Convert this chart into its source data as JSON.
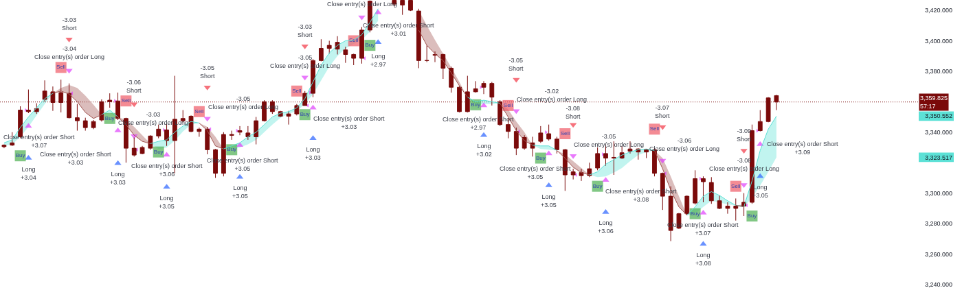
{
  "chart_data": {
    "type": "candlestick",
    "categories": [
      null,
      null,
      null,
      null,
      null,
      null,
      null,
      null,
      null,
      null,
      null,
      null,
      null,
      null,
      null,
      null,
      null,
      null,
      null,
      null,
      null,
      null,
      null,
      null,
      null,
      null,
      null,
      null,
      null,
      null,
      null,
      null,
      null,
      null,
      null,
      null,
      null,
      null,
      null,
      null,
      null,
      null,
      null,
      null,
      null,
      null,
      null,
      null,
      null,
      null,
      null,
      null,
      null,
      null,
      null,
      null,
      null,
      null,
      null,
      null,
      null,
      null,
      null,
      null,
      null,
      null,
      null,
      null,
      null,
      null,
      null,
      null,
      null,
      null,
      null,
      null,
      null,
      null,
      null,
      null,
      null,
      null,
      null,
      null,
      null,
      null,
      null,
      null,
      null,
      null,
      null,
      null,
      null,
      null,
      null,
      null,
      null,
      null,
      null,
      null,
      null,
      null,
      null,
      null,
      null,
      null,
      null,
      null,
      null,
      null,
      null,
      null,
      null
    ],
    "ohlc": [
      [
        3331.5,
        3332,
        3329.5,
        3330.5
      ],
      [
        3333,
        3340,
        3331,
        3331.5
      ],
      [
        3354.5,
        3357,
        3336,
        3337
      ],
      [
        3354.5,
        3368,
        3352.5,
        3353.5
      ],
      [
        3355.5,
        3359,
        3352,
        3353.5
      ],
      [
        3367,
        3374,
        3360,
        3361.5
      ],
      [
        3366.5,
        3370,
        3354,
        3359.5
      ],
      [
        3366,
        3374.5,
        3353,
        3359.5
      ],
      [
        3365.5,
        3372,
        3349,
        3349.5
      ],
      [
        3349.5,
        3358.5,
        3341,
        3347.5
      ],
      [
        3347.5,
        3349.5,
        3341,
        3343
      ],
      [
        3347,
        3348,
        3342,
        3343
      ],
      [
        3360,
        3361.5,
        3347,
        3348
      ],
      [
        3361,
        3365.5,
        3356,
        3360
      ],
      [
        3360.5,
        3366,
        3348,
        3349
      ],
      [
        3349,
        3349.5,
        3320,
        3329.5
      ],
      [
        3329.5,
        3336.5,
        3324,
        3325
      ],
      [
        3330,
        3331,
        3325.5,
        3326
      ],
      [
        3337.5,
        3338,
        3328.5,
        3329.5
      ],
      [
        3342,
        3345,
        3336,
        3337.5
      ],
      [
        3341.5,
        3345.5,
        3331,
        3334.5
      ],
      [
        3348.5,
        3377,
        3313,
        3334.5
      ],
      [
        3349,
        3354.5,
        3346.5,
        3347.5
      ],
      [
        3350.5,
        3351,
        3340,
        3340.5
      ],
      [
        3342,
        3343,
        3337,
        3340.5
      ],
      [
        3342,
        3343.5,
        3325.5,
        3328.5
      ],
      [
        3328.5,
        3329,
        3310,
        3313
      ],
      [
        3338.5,
        3340,
        3311,
        3313
      ],
      [
        3338.5,
        3341,
        3335,
        3338
      ],
      [
        3341,
        3344,
        3338,
        3340
      ],
      [
        3339.5,
        3344,
        3335,
        3337
      ],
      [
        3347.5,
        3350,
        3332,
        3337
      ],
      [
        3360,
        3361,
        3347,
        3347.5
      ],
      [
        3360,
        3361,
        3352,
        3353.5
      ],
      [
        3353.5,
        3354,
        3350,
        3350.5
      ],
      [
        3352,
        3354,
        3345,
        3350.5
      ],
      [
        3357.5,
        3358.5,
        3351,
        3352
      ],
      [
        3365.5,
        3367,
        3357.5,
        3357.5
      ],
      [
        3387,
        3388,
        3363,
        3365.5
      ],
      [
        3395,
        3401,
        3386.5,
        3387
      ],
      [
        3397,
        3400,
        3391.5,
        3395
      ],
      [
        3399,
        3403,
        3391,
        3394.5
      ],
      [
        3394,
        3396,
        3385.5,
        3391
      ],
      [
        3391,
        3391.5,
        3384,
        3388.5
      ],
      [
        3407,
        3409,
        3385,
        3388.5
      ],
      [
        3426,
        3426.5,
        3405.5,
        3407
      ],
      null,
      null,
      [
        3426.5,
        3426.5,
        3422.5,
        3424
      ],
      [
        3426.5,
        3426.5,
        3417,
        3423.5
      ],
      [
        3426.5,
        3426.5,
        3419.5,
        3420
      ],
      [
        3419.5,
        3421,
        3382,
        3387
      ],
      [
        3387,
        3397,
        3386,
        3387
      ],
      [
        3391,
        3393,
        3386,
        3390.5
      ],
      [
        3391,
        3391.5,
        3375,
        3382
      ],
      [
        3382,
        3383,
        3366,
        3369.5
      ],
      [
        3369.5,
        3370,
        3353,
        3353.5
      ],
      [
        3366.5,
        3377,
        3353,
        3353.5
      ],
      [
        3368.5,
        3373.5,
        3366,
        3366.5
      ],
      [
        3372,
        3373.5,
        3365,
        3369.5
      ],
      [
        3372,
        3373,
        3357.5,
        3363
      ],
      [
        3360,
        3361,
        3344,
        3345
      ],
      [
        3345,
        3349,
        3336,
        3340.5
      ],
      [
        3340.5,
        3343,
        3325,
        3329.5
      ],
      [
        3336.5,
        3338,
        3328.5,
        3329.5
      ],
      [
        3333,
        3337,
        3324,
        3329.5
      ],
      [
        3339.5,
        3344,
        3333,
        3334
      ],
      [
        3339,
        3345,
        3334.5,
        3335.5
      ],
      [
        3335.5,
        3337,
        3326,
        3328.5
      ],
      [
        3328.5,
        3329,
        3301.5,
        3312
      ],
      [
        3314,
        3316,
        3309,
        3312
      ],
      [
        3313.5,
        3316,
        3308,
        3311.5
      ],
      [
        3316,
        3320,
        3310.5,
        3311.5
      ],
      [
        3326,
        3330,
        3315,
        3316.5
      ],
      [
        3326,
        3332,
        3318,
        3323
      ],
      [
        3323.5,
        3334,
        3312,
        3323
      ],
      [
        3326.5,
        3331,
        3322.5,
        3323
      ],
      [
        3329,
        3334,
        3326,
        3327.5
      ],
      [
        3329,
        3329.5,
        3322,
        3327
      ],
      [
        3328.5,
        3329,
        3323,
        3327
      ],
      [
        3328.5,
        3329.5,
        3311,
        3313
      ],
      [
        3313,
        3313.5,
        3289,
        3298
      ],
      [
        3298,
        3304.5,
        3268.5,
        3275.5
      ],
      [
        3286.5,
        3287,
        3276.5,
        3277
      ],
      [
        3298,
        3298.5,
        3285.5,
        3286.5
      ],
      [
        3309.5,
        3315,
        3292.5,
        3293.5
      ],
      [
        3309.5,
        3311,
        3294,
        3307.5
      ],
      [
        3307,
        3310.5,
        3293,
        3295
      ],
      [
        3295,
        3298.5,
        3289.5,
        3290
      ],
      [
        3291.5,
        3294,
        3286.5,
        3290
      ],
      [
        3291.5,
        3296.5,
        3282,
        3290
      ],
      [
        3294,
        3300,
        3285,
        3291.5
      ],
      [
        3341,
        3345,
        3293,
        3294
      ],
      [
        3347,
        3354.5,
        3340.5,
        3341
      ],
      [
        3362.5,
        3363,
        3346.5,
        3347
      ],
      [
        3364,
        3364.5,
        3354.5,
        3359.825
      ],
      null,
      null,
      null,
      null,
      null,
      null,
      null,
      null,
      null,
      null,
      null,
      null,
      null,
      null,
      null,
      null,
      null
    ],
    "color": "#7a0a0a",
    "ylim": [
      3237.75,
      3426.75
    ],
    "yticks": [
      {
        "value": 3240,
        "label": "3,240.000"
      },
      {
        "value": 3260,
        "label": "3,260.000"
      },
      {
        "value": 3280,
        "label": "3,280.000"
      },
      {
        "value": 3300,
        "label": "3,300.000"
      },
      {
        "value": 3323.517,
        "label": "3,323.517"
      },
      {
        "value": 3340,
        "label": "3,340.000"
      },
      {
        "value": 3350.552,
        "label": "3,350.552"
      },
      {
        "value": 3380,
        "label": "3,380.000"
      },
      {
        "value": 3400,
        "label": "3,400.000"
      },
      {
        "value": 3420,
        "label": "3,420.000"
      }
    ],
    "tick_labels": "y",
    "series": [
      {
        "type": "line",
        "color": "#5ce1d6",
        "values": [
          3333,
          3335,
          3343,
          3350,
          3356,
          3362,
          3365.5,
          null,
          null,
          null,
          null,
          null,
          3351.5,
          3354.5,
          3350,
          null,
          null,
          null,
          3332.5,
          3334,
          3335,
          3340,
          3344,
          3347,
          3346,
          null,
          null,
          3329,
          3331,
          3333,
          3337,
          3340,
          3345,
          3350,
          3352.5,
          3353.5,
          3356,
          3362,
          3373,
          3384,
          3392,
          3397,
          3400,
          3400.5,
          3404,
          3412,
          3421,
          null,
          null,
          null,
          null,
          null,
          null,
          null,
          null,
          null,
          null,
          3363,
          3360,
          3361,
          3360,
          3359,
          null,
          null,
          null,
          3331.5,
          3331,
          3331,
          3328,
          null,
          null,
          null,
          3312,
          3314,
          3319,
          3322,
          3325,
          3327,
          3328.5,
          3329,
          3328,
          null,
          null,
          null,
          3285.5,
          3291,
          3298,
          3301,
          3298.5,
          3295,
          3292,
          3291,
          3308,
          3328,
          3342,
          3350.552,
          null,
          null,
          null,
          null,
          null,
          null,
          null,
          null,
          null,
          null,
          null,
          null,
          null,
          null,
          null,
          null,
          null
        ],
        "lower": [
          3331,
          3332,
          3337,
          3343.5,
          3351,
          3358.5,
          3365.5,
          null,
          null,
          null,
          null,
          null,
          3351.5,
          3352.5,
          3350,
          null,
          null,
          null,
          3332.5,
          3329,
          3330,
          3334.5,
          3340.5,
          3345,
          3346,
          null,
          null,
          3329,
          3329,
          3330,
          3332,
          3335,
          3340,
          3345,
          3349.5,
          3352,
          3354,
          3358.5,
          3365,
          3374,
          3383,
          3390,
          3395,
          3398,
          3400.5,
          3406,
          3413,
          null,
          null,
          null,
          null,
          null,
          null,
          null,
          null,
          null,
          null,
          3363,
          3358,
          3358.5,
          3358.5,
          3359,
          null,
          null,
          null,
          3331.5,
          3329,
          3328.5,
          3328,
          null,
          null,
          null,
          3312,
          3310.5,
          3311,
          3313.5,
          3316.5,
          3321,
          3325,
          3327,
          3328,
          null,
          null,
          null,
          3285.5,
          3286.5,
          3291,
          3295,
          3294,
          3292.5,
          3292,
          3291,
          3297,
          3305,
          3314,
          3323.517,
          null,
          null,
          null,
          null,
          null,
          null,
          null,
          null,
          null,
          null,
          null,
          null,
          null,
          null,
          null,
          null,
          null
        ],
        "upper": [
          3333,
          3335,
          3343,
          3350,
          3356,
          3362,
          3365.5,
          null,
          null,
          null,
          null,
          null,
          3351.5,
          3354.5,
          3350,
          null,
          null,
          null,
          3332.5,
          3334,
          3335,
          3340,
          3344,
          3347,
          3346,
          null,
          null,
          3329,
          3331,
          3333,
          3337,
          3340,
          3345,
          3350,
          3352.5,
          3353.5,
          3356,
          3362,
          3373,
          3384,
          3392,
          3397,
          3400,
          3400.5,
          3404,
          3412,
          3421,
          null,
          null,
          null,
          null,
          null,
          null,
          null,
          null,
          null,
          null,
          3363,
          3360,
          3361,
          3360,
          3359,
          null,
          null,
          null,
          3331.5,
          3331,
          3331,
          3328,
          null,
          null,
          null,
          3312,
          3314,
          3319,
          3322,
          3325,
          3327,
          3328.5,
          3329,
          3328,
          null,
          null,
          null,
          3285.5,
          3291,
          3298,
          3301,
          3298.5,
          3295,
          3292,
          3292.5,
          3308,
          3328,
          3342,
          3350.552,
          null,
          null,
          null,
          null,
          null,
          null,
          null,
          null,
          null,
          null,
          null,
          null,
          null,
          null,
          null,
          null,
          null
        ]
      },
      {
        "type": "line",
        "color": "#a0524e",
        "values": [
          null,
          null,
          null,
          null,
          null,
          null,
          3365.5,
          3367,
          3365,
          3360,
          3353,
          3349,
          3351.5,
          null,
          3350,
          3345,
          3338,
          3334,
          3332.5,
          null,
          null,
          null,
          null,
          null,
          3346,
          3341,
          3331,
          3329,
          null,
          null,
          null,
          null,
          null,
          null,
          null,
          null,
          null,
          null,
          null,
          null,
          null,
          null,
          null,
          null,
          null,
          null,
          null,
          null,
          null,
          null,
          null,
          3407,
          3397,
          3391.5,
          3387,
          3379,
          3370.5,
          3363,
          null,
          null,
          null,
          3359,
          3350,
          3341,
          3334.5,
          3331.5,
          null,
          null,
          3328,
          3323,
          3317,
          3313.5,
          3312,
          null,
          null,
          null,
          null,
          null,
          null,
          null,
          3328,
          3316,
          3302,
          3291,
          3285.5,
          null,
          null,
          null,
          null,
          null,
          3292,
          3291,
          null,
          null,
          null,
          null,
          null,
          null,
          null,
          null,
          null,
          null,
          null,
          null,
          null,
          null,
          null,
          null,
          null,
          null,
          null,
          null,
          null
        ],
        "lower": [
          null,
          null,
          null,
          null,
          null,
          null,
          3365.5,
          3367,
          3365,
          3360,
          3353,
          3349,
          3351.5,
          null,
          3350,
          3345,
          3338,
          3334,
          3332.5,
          null,
          null,
          null,
          null,
          null,
          3346,
          3341,
          3331,
          3329,
          null,
          null,
          null,
          null,
          null,
          null,
          null,
          null,
          null,
          null,
          null,
          null,
          null,
          null,
          null,
          null,
          null,
          null,
          null,
          null,
          null,
          null,
          null,
          3407,
          3397,
          3391.5,
          3387,
          3379,
          3370.5,
          3363,
          null,
          null,
          null,
          3359,
          3350,
          3341,
          3334.5,
          3331.5,
          null,
          null,
          3328,
          3323,
          3317,
          3313.5,
          3312,
          null,
          null,
          null,
          null,
          null,
          null,
          null,
          3328,
          3316,
          3302,
          3291,
          3285.5,
          null,
          null,
          null,
          null,
          null,
          3292,
          3291,
          null,
          null,
          null,
          null,
          null,
          null,
          null,
          null,
          null,
          null,
          null,
          null,
          null,
          null,
          null,
          null,
          null,
          null,
          null,
          null,
          null
        ],
        "upper": [
          null,
          null,
          null,
          null,
          null,
          null,
          3365.5,
          3369,
          3371,
          3369,
          3364,
          3358,
          3351.5,
          null,
          3350,
          3348,
          3343.5,
          3338,
          3332.5,
          null,
          null,
          null,
          null,
          null,
          3346,
          3343.5,
          3337,
          3329,
          null,
          null,
          null,
          null,
          null,
          null,
          null,
          null,
          null,
          null,
          null,
          null,
          null,
          null,
          null,
          null,
          null,
          null,
          null,
          null,
          null,
          null,
          null,
          3420,
          3410,
          3400.5,
          3391.5,
          3382.5,
          3373,
          3363,
          null,
          null,
          null,
          3359,
          3355,
          3347,
          3340,
          3331.5,
          null,
          null,
          3328,
          3325.5,
          3321,
          3316.5,
          3312,
          null,
          null,
          null,
          null,
          null,
          null,
          null,
          3328,
          3323,
          3311,
          3298,
          3285.5,
          null,
          null,
          null,
          null,
          null,
          3292,
          3292.5,
          null,
          null,
          null,
          null,
          null,
          null,
          null,
          null,
          null,
          null,
          null,
          null,
          null,
          null,
          null,
          null,
          null,
          null,
          null,
          null,
          null
        ]
      },
      {
        "type": "scatter",
        "marker": "triangle",
        "color": "#2962ff",
        "values": [
          null,
          null,
          null,
          3323,
          null,
          null,
          null,
          null,
          null,
          null,
          null,
          null,
          null,
          null,
          3319.5,
          null,
          null,
          null,
          null,
          null,
          3304,
          null,
          null,
          null,
          null,
          null,
          null,
          null,
          null,
          3310.5,
          null,
          null,
          null,
          null,
          null,
          null,
          null,
          null,
          3336,
          null,
          null,
          null,
          null,
          null,
          null,
          null,
          3399,
          null,
          null,
          null,
          null,
          null,
          null,
          null,
          null,
          null,
          null,
          null,
          null,
          3338,
          null,
          null,
          null,
          null,
          null,
          null,
          null,
          3305,
          null,
          null,
          null,
          null,
          null,
          null,
          3287.5,
          null,
          null,
          null,
          null,
          null,
          null,
          null,
          null,
          null,
          null,
          null,
          3266.5,
          null,
          null,
          null,
          null,
          null,
          null,
          3311,
          null,
          null,
          null,
          null,
          null,
          null,
          null,
          null,
          null,
          null,
          null,
          null,
          null,
          null,
          null,
          null,
          null,
          null,
          null
        ]
      },
      {
        "type": "scatter",
        "marker": "triangle",
        "color": "#f23645",
        "values": [
          null,
          null,
          null,
          null,
          null,
          null,
          null,
          null,
          3401,
          null,
          null,
          null,
          null,
          null,
          null,
          null,
          3358.5,
          null,
          null,
          null,
          null,
          null,
          null,
          null,
          null,
          3369.5,
          null,
          null,
          null,
          null,
          null,
          null,
          null,
          null,
          null,
          null,
          null,
          3396.5,
          null,
          null,
          null,
          null,
          null,
          null,
          null,
          null,
          null,
          null,
          null,
          null,
          null,
          null,
          null,
          null,
          null,
          null,
          null,
          null,
          null,
          null,
          null,
          null,
          null,
          3374.5,
          null,
          null,
          null,
          null,
          null,
          null,
          3345,
          null,
          null,
          null,
          null,
          null,
          null,
          null,
          null,
          null,
          null,
          3343.5,
          null,
          null,
          null,
          null,
          null,
          null,
          null,
          null,
          null,
          3328,
          null,
          null,
          null,
          null,
          null,
          null,
          null,
          null,
          null,
          null,
          null,
          null,
          null,
          null,
          null,
          null,
          null,
          null,
          null,
          null,
          null
        ]
      },
      {
        "type": "scatter",
        "marker": "square",
        "color": "#4caf50",
        "values": [
          null,
          null,
          3324.5,
          null,
          null,
          null,
          null,
          null,
          null,
          null,
          null,
          null,
          null,
          3349,
          null,
          null,
          null,
          null,
          null,
          3327,
          null,
          null,
          null,
          null,
          null,
          null,
          null,
          null,
          3328.5,
          null,
          null,
          null,
          null,
          null,
          null,
          null,
          null,
          3351.5,
          null,
          null,
          null,
          null,
          null,
          null,
          null,
          3397,
          null,
          null,
          null,
          null,
          null,
          null,
          null,
          null,
          null,
          null,
          null,
          null,
          3358,
          null,
          null,
          null,
          null,
          null,
          null,
          null,
          3323,
          null,
          null,
          null,
          null,
          null,
          null,
          3304.5,
          null,
          null,
          null,
          null,
          null,
          null,
          null,
          null,
          null,
          null,
          null,
          3286.5,
          null,
          null,
          null,
          null,
          null,
          null,
          3285,
          null,
          null,
          null,
          null,
          null,
          null,
          null,
          null,
          null,
          null,
          null,
          null,
          null,
          null,
          null,
          null,
          null,
          null,
          null,
          null
        ],
        "value_labels": [
          null,
          null,
          "Buy",
          null,
          null,
          null,
          null,
          null,
          null,
          null,
          null,
          null,
          null,
          "Buy",
          null,
          null,
          null,
          null,
          null,
          "Buy",
          null,
          null,
          null,
          null,
          null,
          null,
          null,
          null,
          "Buy",
          null,
          null,
          null,
          null,
          null,
          null,
          null,
          null,
          "Buy",
          null,
          null,
          null,
          null,
          null,
          null,
          null,
          "Buy",
          null,
          null,
          null,
          null,
          null,
          null,
          null,
          null,
          null,
          null,
          null,
          null,
          "Buy",
          null,
          null,
          null,
          null,
          null,
          null,
          null,
          "Buy",
          null,
          null,
          null,
          null,
          null,
          null,
          "Buy",
          null,
          null,
          null,
          null,
          null,
          null,
          null,
          null,
          null,
          null,
          null,
          "Buy",
          null,
          null,
          null,
          null,
          null,
          null,
          "Buy",
          null,
          null,
          null,
          null,
          null,
          null,
          null,
          null,
          null,
          null,
          null,
          null,
          null,
          null,
          null,
          null,
          null,
          null,
          null,
          null
        ]
      },
      {
        "type": "scatter",
        "marker": "square",
        "color": "#f05a66",
        "values": [
          null,
          null,
          null,
          null,
          null,
          null,
          null,
          3382.5,
          null,
          null,
          null,
          null,
          null,
          null,
          null,
          3360.5,
          null,
          null,
          null,
          null,
          null,
          null,
          null,
          null,
          3353.5,
          null,
          null,
          null,
          null,
          null,
          null,
          null,
          null,
          null,
          null,
          null,
          3367,
          null,
          null,
          null,
          null,
          null,
          null,
          3400,
          null,
          null,
          null,
          null,
          null,
          null,
          null,
          null,
          null,
          null,
          null,
          null,
          null,
          null,
          null,
          null,
          null,
          null,
          3357.5,
          null,
          null,
          null,
          null,
          null,
          null,
          3339,
          null,
          null,
          null,
          null,
          null,
          null,
          null,
          null,
          null,
          null,
          3342,
          null,
          null,
          null,
          null,
          null,
          null,
          null,
          null,
          null,
          3304.5,
          null,
          null,
          null,
          null,
          null,
          null,
          null,
          null,
          null,
          null,
          null,
          null,
          null,
          null,
          null,
          null,
          null,
          null,
          null,
          null,
          null,
          null
        ],
        "value_labels": [
          null,
          null,
          null,
          null,
          null,
          null,
          null,
          "Sell",
          null,
          null,
          null,
          null,
          null,
          null,
          null,
          "Sell",
          null,
          null,
          null,
          null,
          null,
          null,
          null,
          null,
          "Sell",
          null,
          null,
          null,
          null,
          null,
          null,
          null,
          null,
          null,
          null,
          null,
          "Sell",
          null,
          null,
          null,
          null,
          null,
          null,
          "Sell",
          null,
          null,
          null,
          null,
          null,
          null,
          null,
          null,
          null,
          null,
          null,
          null,
          null,
          null,
          null,
          null,
          null,
          null,
          "Sell",
          null,
          null,
          null,
          null,
          null,
          null,
          "Sell",
          null,
          null,
          null,
          null,
          null,
          null,
          null,
          null,
          null,
          null,
          "Sell",
          null,
          null,
          null,
          null,
          null,
          null,
          null,
          null,
          null,
          "Sell",
          null,
          null,
          null,
          null,
          null,
          null,
          null,
          null,
          null,
          null,
          null,
          null,
          null,
          null,
          null,
          null,
          null,
          null,
          null,
          null,
          null,
          null
        ]
      },
      {
        "type": "scatter",
        "marker": "triangle",
        "color": "#e040fb",
        "values": [
          null,
          null,
          null,
          3344,
          null,
          null,
          null,
          null,
          3380.5,
          null,
          null,
          null,
          null,
          null,
          3341,
          null,
          3337.5,
          null,
          null,
          null,
          3325,
          null,
          null,
          null,
          null,
          3349,
          null,
          null,
          null,
          3331.5,
          null,
          null,
          null,
          null,
          null,
          null,
          null,
          3376,
          3356,
          null,
          null,
          null,
          null,
          null,
          3415.5,
          null,
          3418.5,
          null,
          null,
          null,
          null,
          null,
          null,
          null,
          null,
          null,
          null,
          null,
          null,
          3357.5,
          null,
          null,
          null,
          3354,
          null,
          null,
          null,
          3326,
          null,
          null,
          3324.5,
          null,
          null,
          null,
          3308.5,
          null,
          null,
          null,
          null,
          null,
          null,
          3321.5,
          null,
          null,
          null,
          null,
          3287,
          null,
          null,
          null,
          null,
          3305.5,
          null,
          3332,
          null,
          null,
          null,
          null,
          null,
          null,
          null,
          null,
          null,
          null,
          null,
          null,
          null,
          null,
          null,
          null,
          null,
          null,
          null
        ]
      },
      {
        "type": "scatter",
        "marker": "triangle",
        "color": "#e040fb",
        "values": [
          null,
          null,
          null,
          3354.5,
          null,
          null,
          null,
          null,
          3365.5,
          null,
          null,
          null,
          null,
          null,
          3360.5,
          null,
          3328.5,
          null,
          null,
          null,
          3341.5,
          null,
          null,
          null,
          null,
          3342,
          null,
          null,
          null,
          3341,
          null,
          null,
          null,
          null,
          null,
          null,
          null,
          3357.5,
          3366,
          null,
          null,
          null,
          null,
          null,
          3388.5,
          null,
          null,
          null,
          null,
          null,
          null,
          null,
          null,
          null,
          null,
          null,
          null,
          null,
          null,
          3369.5,
          null,
          null,
          null,
          3340.5,
          null,
          null,
          null,
          3340,
          null,
          null,
          3312,
          null,
          null,
          null,
          3325.5,
          null,
          null,
          null,
          null,
          null,
          null,
          3313,
          null,
          null,
          null,
          null,
          3309.5,
          null,
          null,
          null,
          null,
          3292,
          null,
          3341,
          null,
          null,
          null,
          null,
          null,
          null,
          null,
          null,
          null,
          null,
          null,
          null,
          null,
          null,
          null,
          null,
          null,
          null,
          null
        ]
      }
    ],
    "ref_lines": [
      {
        "axis": "y",
        "value": 3359.825,
        "label": "3,359.825\n57:17",
        "color": "#7a0a0a",
        "line_style": "dotted"
      }
    ],
    "annotations": [
      "Close entry(s) order Short\n+3.07",
      "Long\n+3.04",
      "-3.03\nShort",
      "-3.04\nClose entry(s) order Long",
      "Close entry(s) order Short\n+3.03",
      "Long\n+3.03",
      "-3.06\nShort",
      "-3.03\nClose entry(s) order Long",
      "Close entry(s) order Short\n+3.06",
      "Long\n+3.05",
      "-3.05\nShort",
      "-3.05\nClose entry(s) order Long",
      "Close entry(s) order Short\n+3.05",
      "Long\n+3.05",
      "-3.03\nShort",
      "-3.05\nClose entry(s) order Long",
      "Close entry(s) order Short\n+3.03",
      "Long\n+3.03",
      "Close entry(s) order Long",
      "Close entry(s) order Short\n+3.01",
      "Long\n+2.97",
      "Close entry(s) order Short\n+2.97",
      "Long\n+3.02",
      "-3.05\nShort",
      "-3.02\nClose entry(s) order Long",
      "Close entry(s) order Short\n+3.05",
      "Long\n+3.05",
      "-3.08\nShort",
      "-3.05\nClose entry(s) order Long",
      "Close entry(s) order Short\n+3.08",
      "Long\n+3.06",
      "-3.07\nShort",
      "-3.06\nClose entry(s) order Long",
      "Close entry(s) order Short\n+3.07",
      "Long\n+3.08",
      "-3.09\nShort",
      "-3.08\nClose entry(s) order Long",
      "Close entry(s) order Short\n+3.09",
      "Long\n+3.05"
    ]
  }
}
